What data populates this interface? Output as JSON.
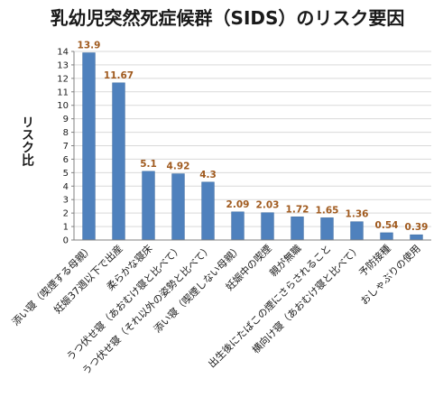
{
  "chart_data": {
    "type": "bar",
    "title": "乳幼児突然死症候群（SIDS）のリスク要因",
    "ylabel": "リスク比",
    "xlabel": "",
    "ylim": [
      0,
      14
    ],
    "yticks": [
      0,
      1,
      2,
      3,
      4,
      5,
      6,
      7,
      8,
      9,
      10,
      11,
      12,
      13,
      14
    ],
    "grid": true,
    "legend": "none",
    "categories": [
      "添い寝（喫煙する母親）",
      "妊娠37週以下で出産",
      "柔らかな寝床",
      "うつ伏せ寝（あおむけ寝と比べて）",
      "うつ伏せ寝（それ以外の姿勢と比べて）",
      "添い寝（喫煙しない母親）",
      "妊娠中の喫煙",
      "親が無職",
      "出生後にたばこの煙にさらされること",
      "横向け寝（あおむけ寝と比べて）",
      "予防接種",
      "おしゃぶりの使用"
    ],
    "values": [
      13.9,
      11.67,
      5.1,
      4.92,
      4.3,
      2.09,
      2.03,
      1.72,
      1.65,
      1.36,
      0.54,
      0.39
    ],
    "value_labels": [
      "13.9",
      "11.67",
      "5.1",
      "4.92",
      "4.3",
      "2.09",
      "2.03",
      "1.72",
      "1.65",
      "1.36",
      "0.54",
      "0.39"
    ],
    "colors": {
      "bar": "#4f81bd",
      "bar_edge": "#3c6a9e",
      "data_label": "#a05a1e",
      "grid": "#d9d9d9",
      "axis": "#808080"
    }
  }
}
